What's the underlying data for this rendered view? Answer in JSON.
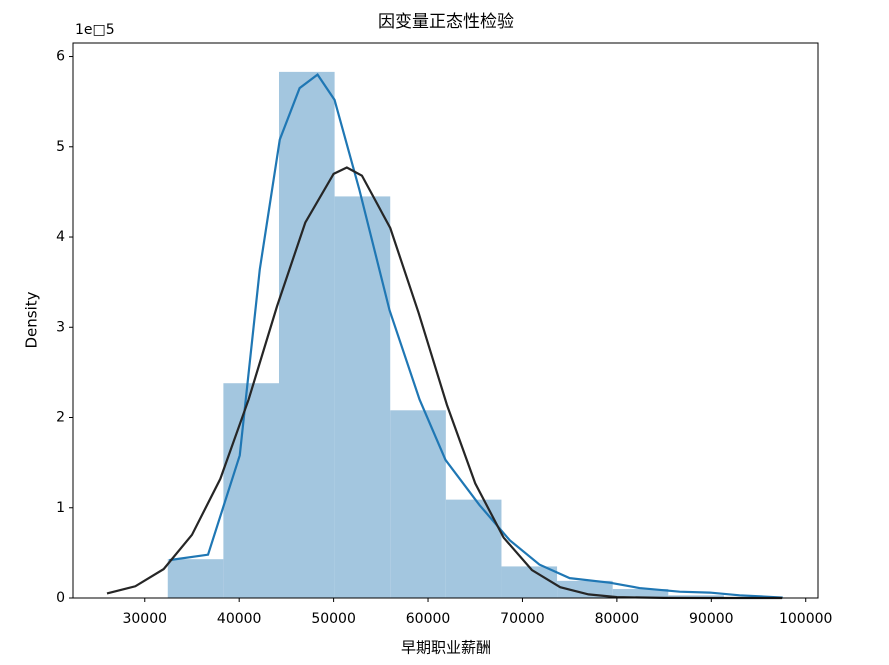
{
  "chart_data": {
    "type": "histogram",
    "title": "因变量正态性检验",
    "xlabel": "早期职业薪酬",
    "ylabel": "Density",
    "y_offset_label": "1e□5",
    "bins": [
      32436,
      38326,
      44216,
      50106,
      55996,
      61886,
      67776,
      73666,
      79556,
      85446,
      91336,
      97226
    ],
    "values": [
      0.43,
      2.38,
      5.83,
      4.45,
      2.08,
      1.09,
      0.35,
      0.19,
      0.1,
      0.03,
      0.01
    ],
    "color": "#a3c6df",
    "series": [
      {
        "type": "line",
        "color": "#1f77b4",
        "x": [
          32600,
          36700,
          40060,
          42180,
          44300,
          46400,
          48300,
          50100,
          52740,
          55920,
          59100,
          61850,
          65450,
          68650,
          71800,
          75000,
          79250,
          82400,
          86650,
          89830,
          93000,
          97560
        ],
        "values": [
          0.42,
          0.48,
          1.58,
          3.64,
          5.08,
          5.65,
          5.8,
          5.52,
          4.52,
          3.19,
          2.2,
          1.53,
          1.03,
          0.64,
          0.37,
          0.22,
          0.17,
          0.11,
          0.07,
          0.06,
          0.03,
          0.005
        ]
      },
      {
        "type": "line",
        "color": "#262626",
        "x": [
          26000,
          29000,
          32000,
          35000,
          38000,
          41000,
          44000,
          47000,
          50000,
          51400,
          53000,
          56000,
          59000,
          62000,
          65000,
          68000,
          71000,
          74000,
          77000,
          80000,
          85000,
          90000,
          97500
        ],
        "values": [
          0.05,
          0.13,
          0.32,
          0.7,
          1.32,
          2.2,
          3.23,
          4.16,
          4.7,
          4.77,
          4.68,
          4.1,
          3.16,
          2.14,
          1.27,
          0.67,
          0.31,
          0.12,
          0.04,
          0.01,
          0.001,
          0,
          0
        ]
      }
    ],
    "xlim": [
      22400,
      101300
    ],
    "ylim": [
      0,
      6.15
    ],
    "xticks": [
      30000,
      40000,
      50000,
      60000,
      70000,
      80000,
      90000,
      100000
    ],
    "yticks": [
      0,
      1,
      2,
      3,
      4,
      5,
      6
    ],
    "grid": false
  }
}
